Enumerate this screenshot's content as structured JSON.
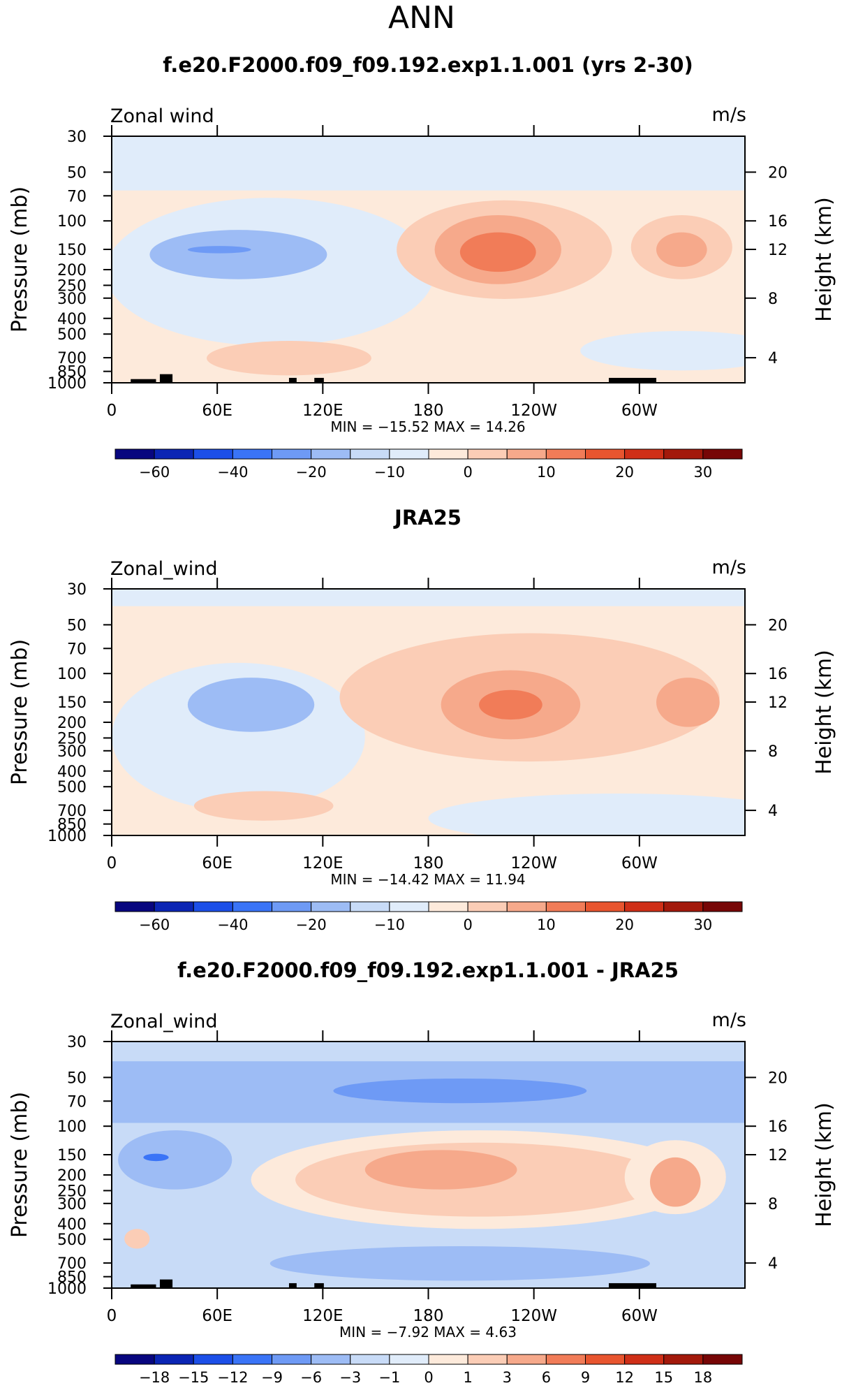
{
  "page_title": "ANN",
  "chart_data": [
    {
      "type": "heatmap",
      "title": "f.e20.F2000.f09_f09.192.exp1.1.001 (yrs 2-30)",
      "left_label": "Zonal wind",
      "units": "m/s",
      "ylabel": "Pressure (mb)",
      "ylabel_right": "Height (km)",
      "xticks": [
        "0",
        "60E",
        "120E",
        "180",
        "120W",
        "60W"
      ],
      "yticks": [
        "30",
        "50",
        "70",
        "100",
        "150",
        "200",
        "250",
        "300",
        "400",
        "500",
        "700",
        "850",
        "1000"
      ],
      "yticks_right": [
        "20",
        "16",
        "12",
        "8",
        "4"
      ],
      "stats": "MIN =  −15.52   MAX =   14.26",
      "min": -15.52,
      "max": 14.26,
      "colorbar": {
        "labels": [
          "−60",
          "−40",
          "−20",
          "−10",
          "0",
          "10",
          "20",
          "30"
        ],
        "colors": [
          "#08067f",
          "#0b25b4",
          "#1c4fe8",
          "#3a74f7",
          "#6e9af5",
          "#9dbcf5",
          "#c8dbf7",
          "#e0ecfa",
          "#fdeadb",
          "#fbcdb6",
          "#f6a98b",
          "#f17c58",
          "#e8552f",
          "#cf2f17",
          "#a3190b",
          "#770606"
        ]
      }
    },
    {
      "type": "heatmap",
      "title": "JRA25",
      "left_label": "Zonal_wind",
      "units": "m/s",
      "ylabel": "Pressure (mb)",
      "ylabel_right": "Height (km)",
      "xticks": [
        "0",
        "60E",
        "120E",
        "180",
        "120W",
        "60W"
      ],
      "yticks": [
        "30",
        "50",
        "70",
        "100",
        "150",
        "200",
        "250",
        "300",
        "400",
        "500",
        "700",
        "850",
        "1000"
      ],
      "yticks_right": [
        "20",
        "16",
        "12",
        "8",
        "4"
      ],
      "stats": "MIN =  −14.42   MAX =   11.94",
      "min": -14.42,
      "max": 11.94,
      "colorbar": {
        "labels": [
          "−60",
          "−40",
          "−20",
          "−10",
          "0",
          "10",
          "20",
          "30"
        ],
        "colors": [
          "#08067f",
          "#0b25b4",
          "#1c4fe8",
          "#3a74f7",
          "#6e9af5",
          "#9dbcf5",
          "#c8dbf7",
          "#e0ecfa",
          "#fdeadb",
          "#fbcdb6",
          "#f6a98b",
          "#f17c58",
          "#e8552f",
          "#cf2f17",
          "#a3190b",
          "#770606"
        ]
      }
    },
    {
      "type": "heatmap",
      "title": "f.e20.F2000.f09_f09.192.exp1.1.001 - JRA25",
      "left_label": "Zonal_wind",
      "units": "m/s",
      "ylabel": "Pressure (mb)",
      "ylabel_right": "Height (km)",
      "xticks": [
        "0",
        "60E",
        "120E",
        "180",
        "120W",
        "60W"
      ],
      "yticks": [
        "30",
        "50",
        "70",
        "100",
        "150",
        "200",
        "250",
        "300",
        "400",
        "500",
        "700",
        "850",
        "1000"
      ],
      "yticks_right": [
        "20",
        "16",
        "12",
        "8",
        "4"
      ],
      "stats": "MIN =   −7.92   MAX =    4.63",
      "min": -7.92,
      "max": 4.63,
      "colorbar": {
        "labels": [
          "−18",
          "−15",
          "−12",
          "−9",
          "−6",
          "−3",
          "−1",
          "0",
          "1",
          "3",
          "6",
          "9",
          "12",
          "15",
          "18"
        ],
        "colors": [
          "#08067f",
          "#0b25b4",
          "#1c4fe8",
          "#3a74f7",
          "#6e9af5",
          "#9dbcf5",
          "#c8dbf7",
          "#e0ecfa",
          "#fdeadb",
          "#fbcdb6",
          "#f6a98b",
          "#f17c58",
          "#e8552f",
          "#cf2f17",
          "#a3190b",
          "#770606"
        ]
      }
    }
  ]
}
